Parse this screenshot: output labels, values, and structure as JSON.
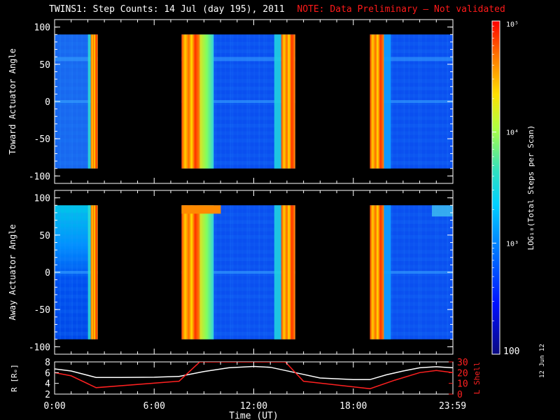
{
  "header": {
    "title": "TWINS1: Step Counts: 14 Jul (day 195), 2011",
    "note": "NOTE: Data Preliminary — Not validated"
  },
  "stamp": "12 Jun 12",
  "colors": {
    "background": "#000000",
    "axes": "#ffffff",
    "note": "#ff1a1a",
    "r_line": "#ffffff",
    "lshell_line": "#ff2020"
  },
  "chart_data": [
    {
      "type": "heatmap",
      "ylabel": "Toward Actuator Angle",
      "ylim": [
        -110,
        110
      ],
      "yticks": [
        100,
        50,
        0,
        -50,
        -100
      ],
      "xlim": [
        0,
        24
      ],
      "data_range_deg": [
        -90,
        90
      ],
      "data_blocks_hours": [
        [
          0.0,
          2.6
        ],
        [
          7.65,
          14.5
        ],
        [
          19.0,
          24.0
        ]
      ],
      "colorscale": "log",
      "clim": [
        100,
        100000
      ]
    },
    {
      "type": "heatmap",
      "ylabel": "Away Actuator Angle",
      "ylim": [
        -110,
        110
      ],
      "yticks": [
        100,
        50,
        0,
        -50,
        -100
      ],
      "xlim": [
        0,
        24
      ],
      "data_range_deg": [
        -90,
        90
      ],
      "data_blocks_hours": [
        [
          0.0,
          2.6
        ],
        [
          7.65,
          14.5
        ],
        [
          19.0,
          24.0
        ]
      ],
      "colorscale": "log",
      "clim": [
        100,
        100000
      ]
    },
    {
      "type": "line",
      "ylabel_left": "R [Rₑ]",
      "ylabel_right": "L Shell",
      "xlabel": "Time (UT)",
      "xticks": [
        "0:00",
        "6:00",
        "12:00",
        "18:00",
        "23:59"
      ],
      "xtick_hours": [
        0,
        6,
        12,
        18,
        23.98
      ],
      "ylim_left": [
        2,
        8
      ],
      "yticks_left": [
        8,
        6,
        4,
        2
      ],
      "ylim_right": [
        0,
        30
      ],
      "yticks_right": [
        30,
        20,
        10,
        0
      ],
      "series": [
        {
          "name": "R [Rₑ]",
          "x": [
            0,
            1,
            2.5,
            4,
            6,
            7.5,
            9,
            10.5,
            12,
            13,
            14.5,
            16,
            18,
            19,
            20,
            21,
            22,
            23,
            24
          ],
          "y": [
            6.7,
            6.3,
            5.1,
            5.1,
            5.15,
            5.3,
            6.2,
            6.9,
            7.15,
            7.0,
            6.0,
            5.0,
            4.7,
            4.7,
            5.6,
            6.3,
            6.9,
            7.1,
            6.9
          ]
        },
        {
          "name": "L Shell",
          "x": [
            0,
            1,
            2.5,
            7.5,
            8.75,
            13.9,
            15,
            19.0,
            20.5,
            22,
            23,
            24
          ],
          "y": [
            20,
            17,
            6,
            12,
            30,
            30,
            12,
            5,
            13,
            20,
            22,
            20
          ]
        }
      ]
    },
    {
      "type": "colorbar",
      "label": "LOG₁₀(Total Steps per Scan)",
      "scale": "log",
      "range": [
        100,
        100000
      ],
      "tick_labels": [
        "10⁵",
        "10⁴",
        "10³",
        "100"
      ]
    }
  ]
}
